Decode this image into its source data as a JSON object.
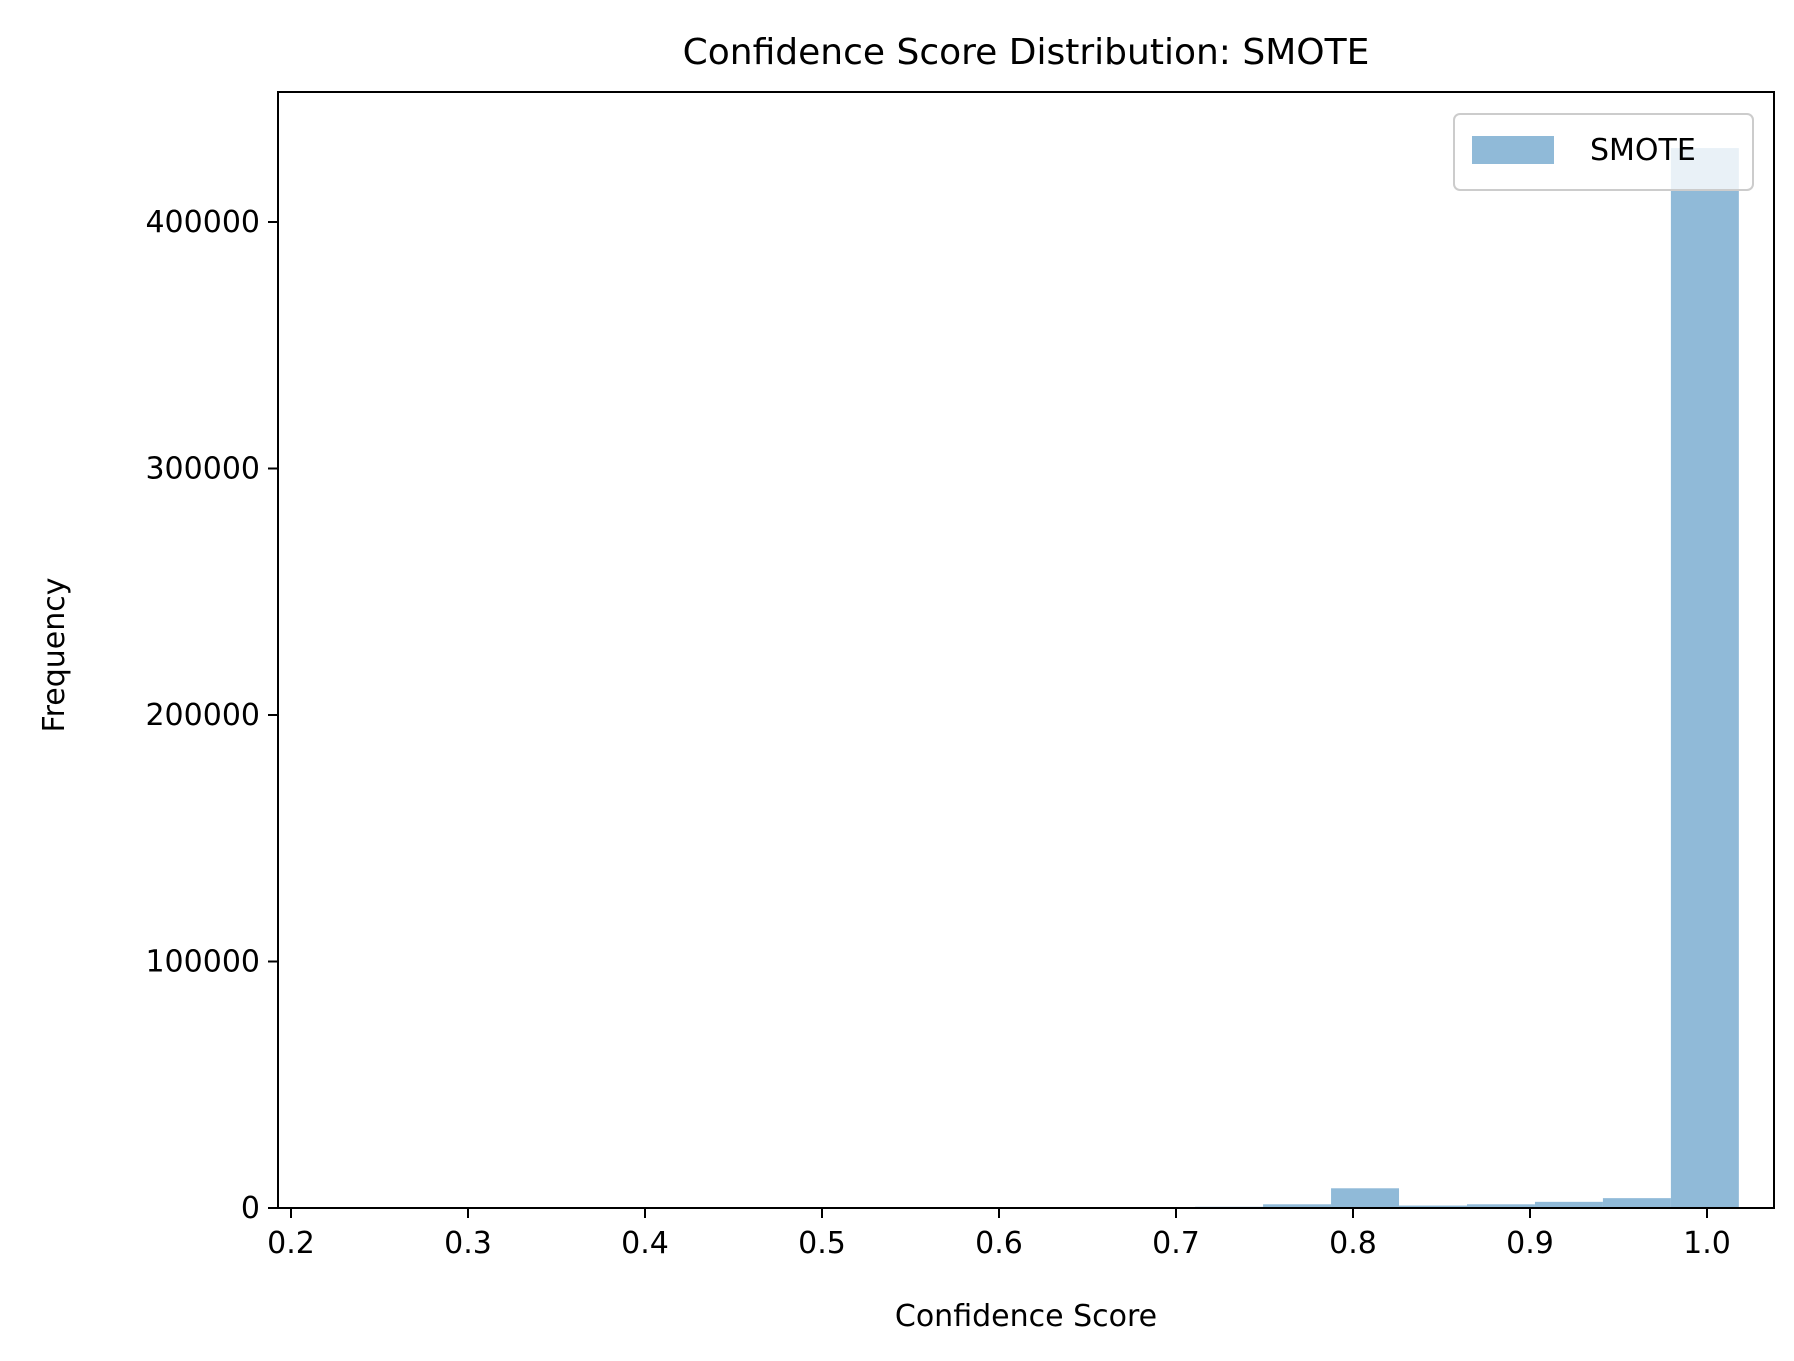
{
  "chart_data": {
    "type": "bar",
    "title": "Confidence Score Distribution: SMOTE",
    "xlabel": "Confidence Score",
    "ylabel": "Frequency",
    "xlim": [
      0.2,
      1.0
    ],
    "ylim": [
      0,
      450000
    ],
    "xticks": [
      "0.2",
      "0.3",
      "0.4",
      "0.5",
      "0.6",
      "0.7",
      "0.8",
      "0.9",
      "1.0"
    ],
    "yticks": [
      "0",
      "100000",
      "200000",
      "300000",
      "400000"
    ],
    "grid": false,
    "legend_position": "top-right",
    "series": [
      {
        "name": "SMOTE",
        "color": "#90bad8",
        "bins": [
          {
            "x0": 0.2117,
            "x1": 0.25,
            "count": 100
          },
          {
            "x0": 0.25,
            "x1": 0.2884,
            "count": 0
          },
          {
            "x0": 0.2884,
            "x1": 0.3268,
            "count": 0
          },
          {
            "x0": 0.3268,
            "x1": 0.3652,
            "count": 0
          },
          {
            "x0": 0.3652,
            "x1": 0.4036,
            "count": 0
          },
          {
            "x0": 0.4036,
            "x1": 0.442,
            "count": 0
          },
          {
            "x0": 0.442,
            "x1": 0.4804,
            "count": 0
          },
          {
            "x0": 0.4804,
            "x1": 0.5188,
            "count": 0
          },
          {
            "x0": 0.5188,
            "x1": 0.5572,
            "count": 0
          },
          {
            "x0": 0.5572,
            "x1": 0.5956,
            "count": 200
          },
          {
            "x0": 0.5956,
            "x1": 0.634,
            "count": 400
          },
          {
            "x0": 0.634,
            "x1": 0.6724,
            "count": 0
          },
          {
            "x0": 0.6724,
            "x1": 0.7108,
            "count": 200
          },
          {
            "x0": 0.7108,
            "x1": 0.7492,
            "count": 500
          },
          {
            "x0": 0.7492,
            "x1": 0.7876,
            "count": 1500
          },
          {
            "x0": 0.7876,
            "x1": 0.826,
            "count": 8000
          },
          {
            "x0": 0.826,
            "x1": 0.8644,
            "count": 1000
          },
          {
            "x0": 0.8644,
            "x1": 0.9028,
            "count": 1500
          },
          {
            "x0": 0.9028,
            "x1": 0.9412,
            "count": 2500
          },
          {
            "x0": 0.9412,
            "x1": 0.9796,
            "count": 4000
          },
          {
            "x0": 0.9796,
            "x1": 1.018,
            "count": 430000
          }
        ]
      }
    ]
  }
}
